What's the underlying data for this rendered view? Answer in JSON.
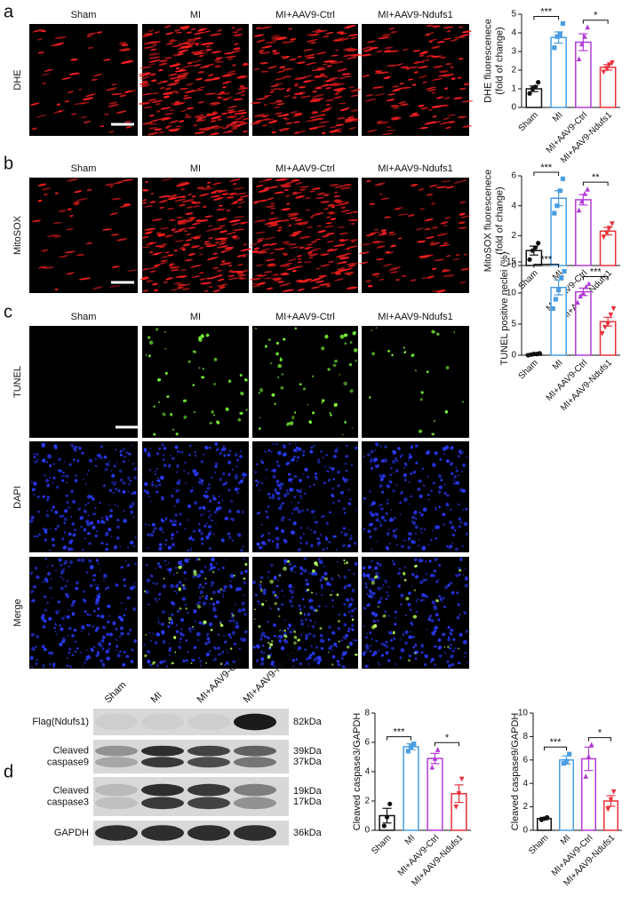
{
  "panel_letters": [
    "a",
    "b",
    "c",
    "d"
  ],
  "image_columns": [
    "Sham",
    "MI",
    "MI+AAV9-Ctrl",
    "MI+AAV9-Ndufs1"
  ],
  "image_rows": {
    "a": [
      "DHE"
    ],
    "b": [
      "MitoSOX"
    ],
    "c": [
      "TUNEL",
      "DAPI",
      "Merge"
    ]
  },
  "blot": {
    "rows": [
      {
        "label": [
          "Flag(Ndufs1)"
        ],
        "kda": [
          "82kDa"
        ]
      },
      {
        "label": [
          "Cleaved",
          "caspase9"
        ],
        "kda": [
          "39kDa",
          "37kDa"
        ]
      },
      {
        "label": [
          "Cleaved",
          "caspase3"
        ],
        "kda": [
          "19kDa",
          "17kDa"
        ]
      },
      {
        "label": [
          "GAPDH"
        ],
        "kda": [
          "36kDa"
        ]
      }
    ]
  },
  "chart_data": [
    {
      "type": "bar",
      "ylabel": [
        "DHE fluorescenece",
        "(fold of change)"
      ],
      "categories": [
        "Sham",
        "MI",
        "MI+AAV9-Ctrl",
        "MI+AAV9-Ndufs1"
      ],
      "values": [
        1.0,
        3.75,
        3.5,
        2.15
      ],
      "errors": [
        0.15,
        0.3,
        0.45,
        0.15
      ],
      "points": [
        [
          0.75,
          1.0,
          1.1,
          1.35
        ],
        [
          3.2,
          3.8,
          3.9,
          4.5
        ],
        [
          2.6,
          3.4,
          3.8,
          4.3
        ],
        [
          1.9,
          2.1,
          2.3,
          2.4
        ]
      ],
      "colors": [
        "#111111",
        "#4a9de0",
        "#b23bd6",
        "#e8323a"
      ],
      "markers": [
        "circle",
        "square",
        "triangle",
        "triangle-down"
      ],
      "ylim": [
        0,
        5
      ],
      "yticks": [
        0,
        1,
        2,
        3,
        4,
        5
      ],
      "annotations": [
        {
          "text": "***",
          "between": [
            "Sham",
            "MI"
          ]
        },
        {
          "text": "*",
          "between": [
            "MI+AAV9-Ctrl",
            "MI+AAV9-Ndufs1"
          ]
        }
      ]
    },
    {
      "type": "bar",
      "ylabel": [
        "MitoSOX fluorescenece",
        "(fold of change)"
      ],
      "categories": [
        "Sham",
        "MI",
        "MI+AAV9-Ctrl",
        "MI+AAV9-Ndufs1"
      ],
      "values": [
        1.0,
        4.5,
        4.4,
        2.3
      ],
      "errors": [
        0.3,
        0.5,
        0.35,
        0.25
      ],
      "points": [
        [
          0.4,
          1.0,
          1.2,
          1.5
        ],
        [
          3.5,
          4.0,
          5.0,
          5.8
        ],
        [
          3.7,
          4.3,
          4.8,
          5.1
        ],
        [
          1.9,
          2.2,
          2.5,
          2.8
        ]
      ],
      "colors": [
        "#111111",
        "#4a9de0",
        "#b23bd6",
        "#e8323a"
      ],
      "markers": [
        "circle",
        "square",
        "triangle",
        "triangle-down"
      ],
      "ylim": [
        0,
        6
      ],
      "yticks": [
        0,
        2,
        4,
        6
      ],
      "annotations": [
        {
          "text": "***",
          "between": [
            "Sham",
            "MI"
          ]
        },
        {
          "text": "**",
          "between": [
            "MI+AAV9-Ctrl",
            "MI+AAV9-Ndufs1"
          ]
        }
      ]
    },
    {
      "type": "bar",
      "ylabel": [
        "TUNEL positive neclei (%)"
      ],
      "categories": [
        "Sham",
        "MI",
        "MI+AAV9-Ctrl",
        "MI+AAV9-Ndufs1"
      ],
      "values": [
        0.15,
        10.9,
        10.2,
        5.4
      ],
      "errors": [
        0.1,
        1.2,
        0.6,
        0.7
      ],
      "points": [
        [
          0,
          0.1,
          0.2,
          0.2,
          0.3
        ],
        [
          7.5,
          9,
          10.5,
          12.5,
          13.5
        ],
        [
          8.5,
          9.5,
          10,
          11,
          11.5
        ],
        [
          3.5,
          4.5,
          5,
          6.5,
          7.5
        ]
      ],
      "colors": [
        "#111111",
        "#4a9de0",
        "#b23bd6",
        "#e8323a"
      ],
      "markers": [
        "circle",
        "square",
        "triangle",
        "triangle-down"
      ],
      "ylim": [
        0,
        15
      ],
      "yticks": [
        0,
        5,
        10,
        15
      ],
      "annotations": [
        {
          "text": "***",
          "between": [
            "Sham",
            "MI"
          ]
        },
        {
          "text": "***",
          "between": [
            "MI+AAV9-Ctrl",
            "MI+AAV9-Ndufs1"
          ]
        }
      ]
    },
    {
      "type": "bar",
      "ylabel": [
        "Cleaved caspase3/GAPDH"
      ],
      "categories": [
        "Sham",
        "MI",
        "MI+AAV9-Ctrl",
        "MI+AAV9-Ndufs1"
      ],
      "values": [
        1.0,
        5.7,
        4.9,
        2.5
      ],
      "errors": [
        0.5,
        0.2,
        0.35,
        0.6
      ],
      "points": [
        [
          0.3,
          0.9,
          1.8
        ],
        [
          5.4,
          5.7,
          5.9
        ],
        [
          4.3,
          4.9,
          5.5
        ],
        [
          1.6,
          2.5,
          3.5
        ]
      ],
      "colors": [
        "#111111",
        "#4a9de0",
        "#b23bd6",
        "#e8323a"
      ],
      "markers": [
        "circle",
        "square",
        "triangle",
        "triangle-down"
      ],
      "ylim": [
        0,
        8
      ],
      "yticks": [
        0,
        2,
        4,
        6,
        8
      ],
      "annotations": [
        {
          "text": "***",
          "between": [
            "Sham",
            "MI"
          ]
        },
        {
          "text": "*",
          "between": [
            "MI+AAV9-Ctrl",
            "MI+AAV9-Ndufs1"
          ]
        }
      ]
    },
    {
      "type": "bar",
      "ylabel": [
        "Cleaved caspase9/GAPDH"
      ],
      "categories": [
        "Sham",
        "MI",
        "MI+AAV9-Ctrl",
        "MI+AAV9-Ndufs1"
      ],
      "values": [
        1.0,
        6.0,
        6.1,
        2.5
      ],
      "errors": [
        0.1,
        0.35,
        1.0,
        0.45
      ],
      "points": [
        [
          0.9,
          1.0,
          1.1
        ],
        [
          5.7,
          5.9,
          6.5
        ],
        [
          4.6,
          6.3,
          7.3
        ],
        [
          1.8,
          2.6,
          3.3
        ]
      ],
      "colors": [
        "#111111",
        "#4a9de0",
        "#b23bd6",
        "#e8323a"
      ],
      "markers": [
        "circle",
        "square",
        "triangle",
        "triangle-down"
      ],
      "ylim": [
        0,
        10
      ],
      "yticks": [
        0,
        2,
        4,
        6,
        8,
        10
      ],
      "annotations": [
        {
          "text": "***",
          "between": [
            "Sham",
            "MI"
          ]
        },
        {
          "text": "*",
          "between": [
            "MI+AAV9-Ctrl",
            "MI+AAV9-Ndufs1"
          ]
        }
      ]
    }
  ]
}
